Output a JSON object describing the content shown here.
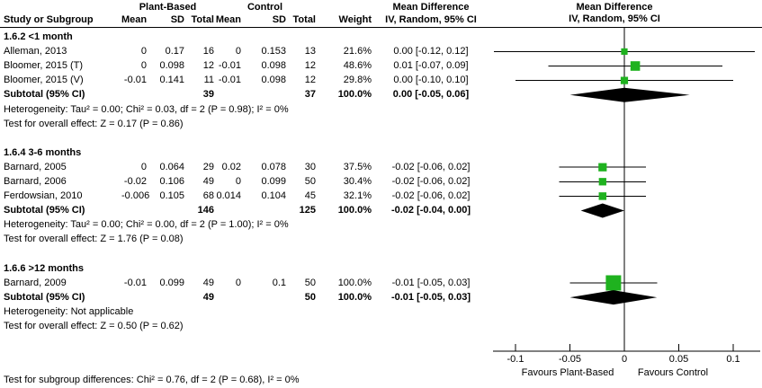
{
  "headers": {
    "study": "Study or Subgroup",
    "group1": "Plant-Based",
    "group2": "Control",
    "mean1": "Mean",
    "sd1": "SD",
    "total1": "Total",
    "mean2": "Mean",
    "sd2": "SD",
    "total2": "Total",
    "weight": "Weight",
    "md_title": "Mean Difference",
    "md_sub": "IV, Random, 95% CI",
    "md_title_right": "Mean Difference",
    "md_sub_right": "IV, Random, 95% CI"
  },
  "footer": "Test for subgroup differences: Chi² = 0.76, df = 2 (P = 0.68), I² = 0%",
  "colors": {
    "square": "#1FB21F",
    "diamond": "#000000",
    "line": "#000000",
    "text": "#000000"
  },
  "chart_data": {
    "type": "forest",
    "effect_measure": "Mean Difference, IV, Random, 95% CI",
    "axis": {
      "min": -0.1,
      "max": 0.1,
      "ticks": [
        -0.1,
        -0.05,
        0,
        0.05,
        0.1
      ],
      "tick_labels": [
        "-0.1",
        "-0.05",
        "0",
        "0.05",
        "0.1"
      ],
      "favours_left": "Favours Plant-Based",
      "favours_right": "Favours Control"
    },
    "sections": [
      {
        "title": "1.6.2 <1 month",
        "studies": [
          {
            "study": "Alleman, 2013",
            "exp_mean": "0",
            "exp_sd": "0.17",
            "exp_n": "16",
            "ctl_mean": "0",
            "ctl_sd": "0.153",
            "ctl_n": "13",
            "weight": "21.6%",
            "ci_label": "0.00 [-0.12, 0.12]",
            "est": 0,
            "lo": -0.12,
            "hi": 0.12,
            "weight_value": 21.6
          },
          {
            "study": "Bloomer, 2015 (T)",
            "exp_mean": "0",
            "exp_sd": "0.098",
            "exp_n": "12",
            "ctl_mean": "-0.01",
            "ctl_sd": "0.098",
            "ctl_n": "12",
            "weight": "48.6%",
            "ci_label": "0.01 [-0.07, 0.09]",
            "est": 0.01,
            "lo": -0.07,
            "hi": 0.09,
            "weight_value": 48.6
          },
          {
            "study": "Bloomer, 2015 (V)",
            "exp_mean": "-0.01",
            "exp_sd": "0.141",
            "exp_n": "11",
            "ctl_mean": "-0.01",
            "ctl_sd": "0.098",
            "ctl_n": "12",
            "weight": "29.8%",
            "ci_label": "0.00 [-0.10, 0.10]",
            "est": 0,
            "lo": -0.1,
            "hi": 0.1,
            "weight_value": 29.8
          }
        ],
        "subtotal": {
          "label": "Subtotal (95% CI)",
          "exp_n": "39",
          "ctl_n": "37",
          "weight": "100.0%",
          "ci_label": "0.00 [-0.05, 0.06]",
          "est": 0,
          "lo": -0.05,
          "hi": 0.06
        },
        "heterogeneity": "Heterogeneity: Tau² = 0.00; Chi² = 0.03, df = 2 (P = 0.98); I² = 0%",
        "overall_test": "Test for overall effect: Z = 0.17 (P = 0.86)"
      },
      {
        "title": "1.6.4 3-6 months",
        "studies": [
          {
            "study": "Barnard, 2005",
            "exp_mean": "0",
            "exp_sd": "0.064",
            "exp_n": "29",
            "ctl_mean": "0.02",
            "ctl_sd": "0.078",
            "ctl_n": "30",
            "weight": "37.5%",
            "ci_label": "-0.02 [-0.06, 0.02]",
            "est": -0.02,
            "lo": -0.06,
            "hi": 0.02,
            "weight_value": 37.5
          },
          {
            "study": "Barnard, 2006",
            "exp_mean": "-0.02",
            "exp_sd": "0.106",
            "exp_n": "49",
            "ctl_mean": "0",
            "ctl_sd": "0.099",
            "ctl_n": "50",
            "weight": "30.4%",
            "ci_label": "-0.02 [-0.06, 0.02]",
            "est": -0.02,
            "lo": -0.06,
            "hi": 0.02,
            "weight_value": 30.4
          },
          {
            "study": "Ferdowsian, 2010",
            "exp_mean": "-0.006",
            "exp_sd": "0.105",
            "exp_n": "68",
            "ctl_mean": "0.014",
            "ctl_sd": "0.104",
            "ctl_n": "45",
            "weight": "32.1%",
            "ci_label": "-0.02 [-0.06, 0.02]",
            "est": -0.02,
            "lo": -0.06,
            "hi": 0.02,
            "weight_value": 32.1
          }
        ],
        "subtotal": {
          "label": "Subtotal (95% CI)",
          "exp_n": "146",
          "ctl_n": "125",
          "weight": "100.0%",
          "ci_label": "-0.02 [-0.04, 0.00]",
          "est": -0.02,
          "lo": -0.04,
          "hi": 0
        },
        "heterogeneity": "Heterogeneity: Tau² = 0.00; Chi² = 0.00, df = 2 (P = 1.00); I² = 0%",
        "overall_test": "Test for overall effect: Z = 1.76 (P = 0.08)"
      },
      {
        "title": "1.6.6 >12 months",
        "studies": [
          {
            "study": "Barnard, 2009",
            "exp_mean": "-0.01",
            "exp_sd": "0.099",
            "exp_n": "49",
            "ctl_mean": "0",
            "ctl_sd": "0.1",
            "ctl_n": "50",
            "weight": "100.0%",
            "ci_label": "-0.01 [-0.05, 0.03]",
            "est": -0.01,
            "lo": -0.05,
            "hi": 0.03,
            "weight_value": 100
          }
        ],
        "subtotal": {
          "label": "Subtotal (95% CI)",
          "exp_n": "49",
          "ctl_n": "50",
          "weight": "100.0%",
          "ci_label": "-0.01 [-0.05, 0.03]",
          "est": -0.01,
          "lo": -0.05,
          "hi": 0.03
        },
        "heterogeneity": "Heterogeneity: Not applicable",
        "overall_test": "Test for overall effect: Z = 0.50 (P = 0.62)"
      }
    ]
  }
}
